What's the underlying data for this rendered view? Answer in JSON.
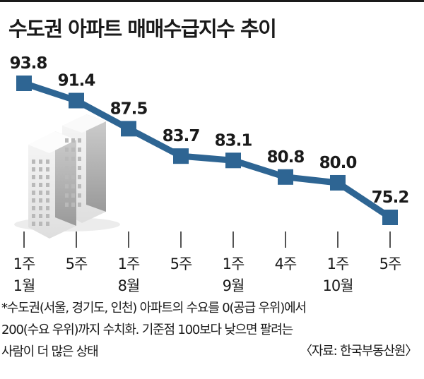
{
  "title": "수도권 아파트 매매수급지수 추이",
  "chart_data": {
    "type": "line",
    "title": "수도권 아파트 매매수급지수 추이",
    "categories": [
      "1월 1주",
      "1월 5주",
      "8월 1주",
      "8월 5주",
      "9월 1주",
      "9월 4주",
      "10월 1주",
      "10월 5주"
    ],
    "tick_weeks": [
      "1주",
      "5주",
      "1주",
      "5주",
      "1주",
      "4주",
      "1주",
      "5주"
    ],
    "tick_months": [
      "1월",
      "",
      "8월",
      "",
      "9월",
      "",
      "10월",
      ""
    ],
    "values": [
      93.8,
      91.4,
      87.5,
      83.7,
      83.1,
      80.8,
      80.0,
      75.2
    ],
    "value_labels": [
      "93.8",
      "91.4",
      "87.5",
      "83.7",
      "83.1",
      "80.8",
      "80.0",
      "75.2"
    ],
    "xlabel": "",
    "ylabel": "",
    "ylim": [
      72,
      96
    ],
    "grid": false,
    "legend": "none",
    "line_color": "#2e6593",
    "marker_color": "#2e6593"
  },
  "notes": [
    "*수도권(서울, 경기도, 인천) 아파트의 수요를 0(공급 우위)에서",
    "200(수요 우위)까지 수치화. 기준점 100보다 낮으면 팔려는",
    "사람이 더 많은 상태"
  ],
  "source": "〈자료: 한국부동산원〉"
}
